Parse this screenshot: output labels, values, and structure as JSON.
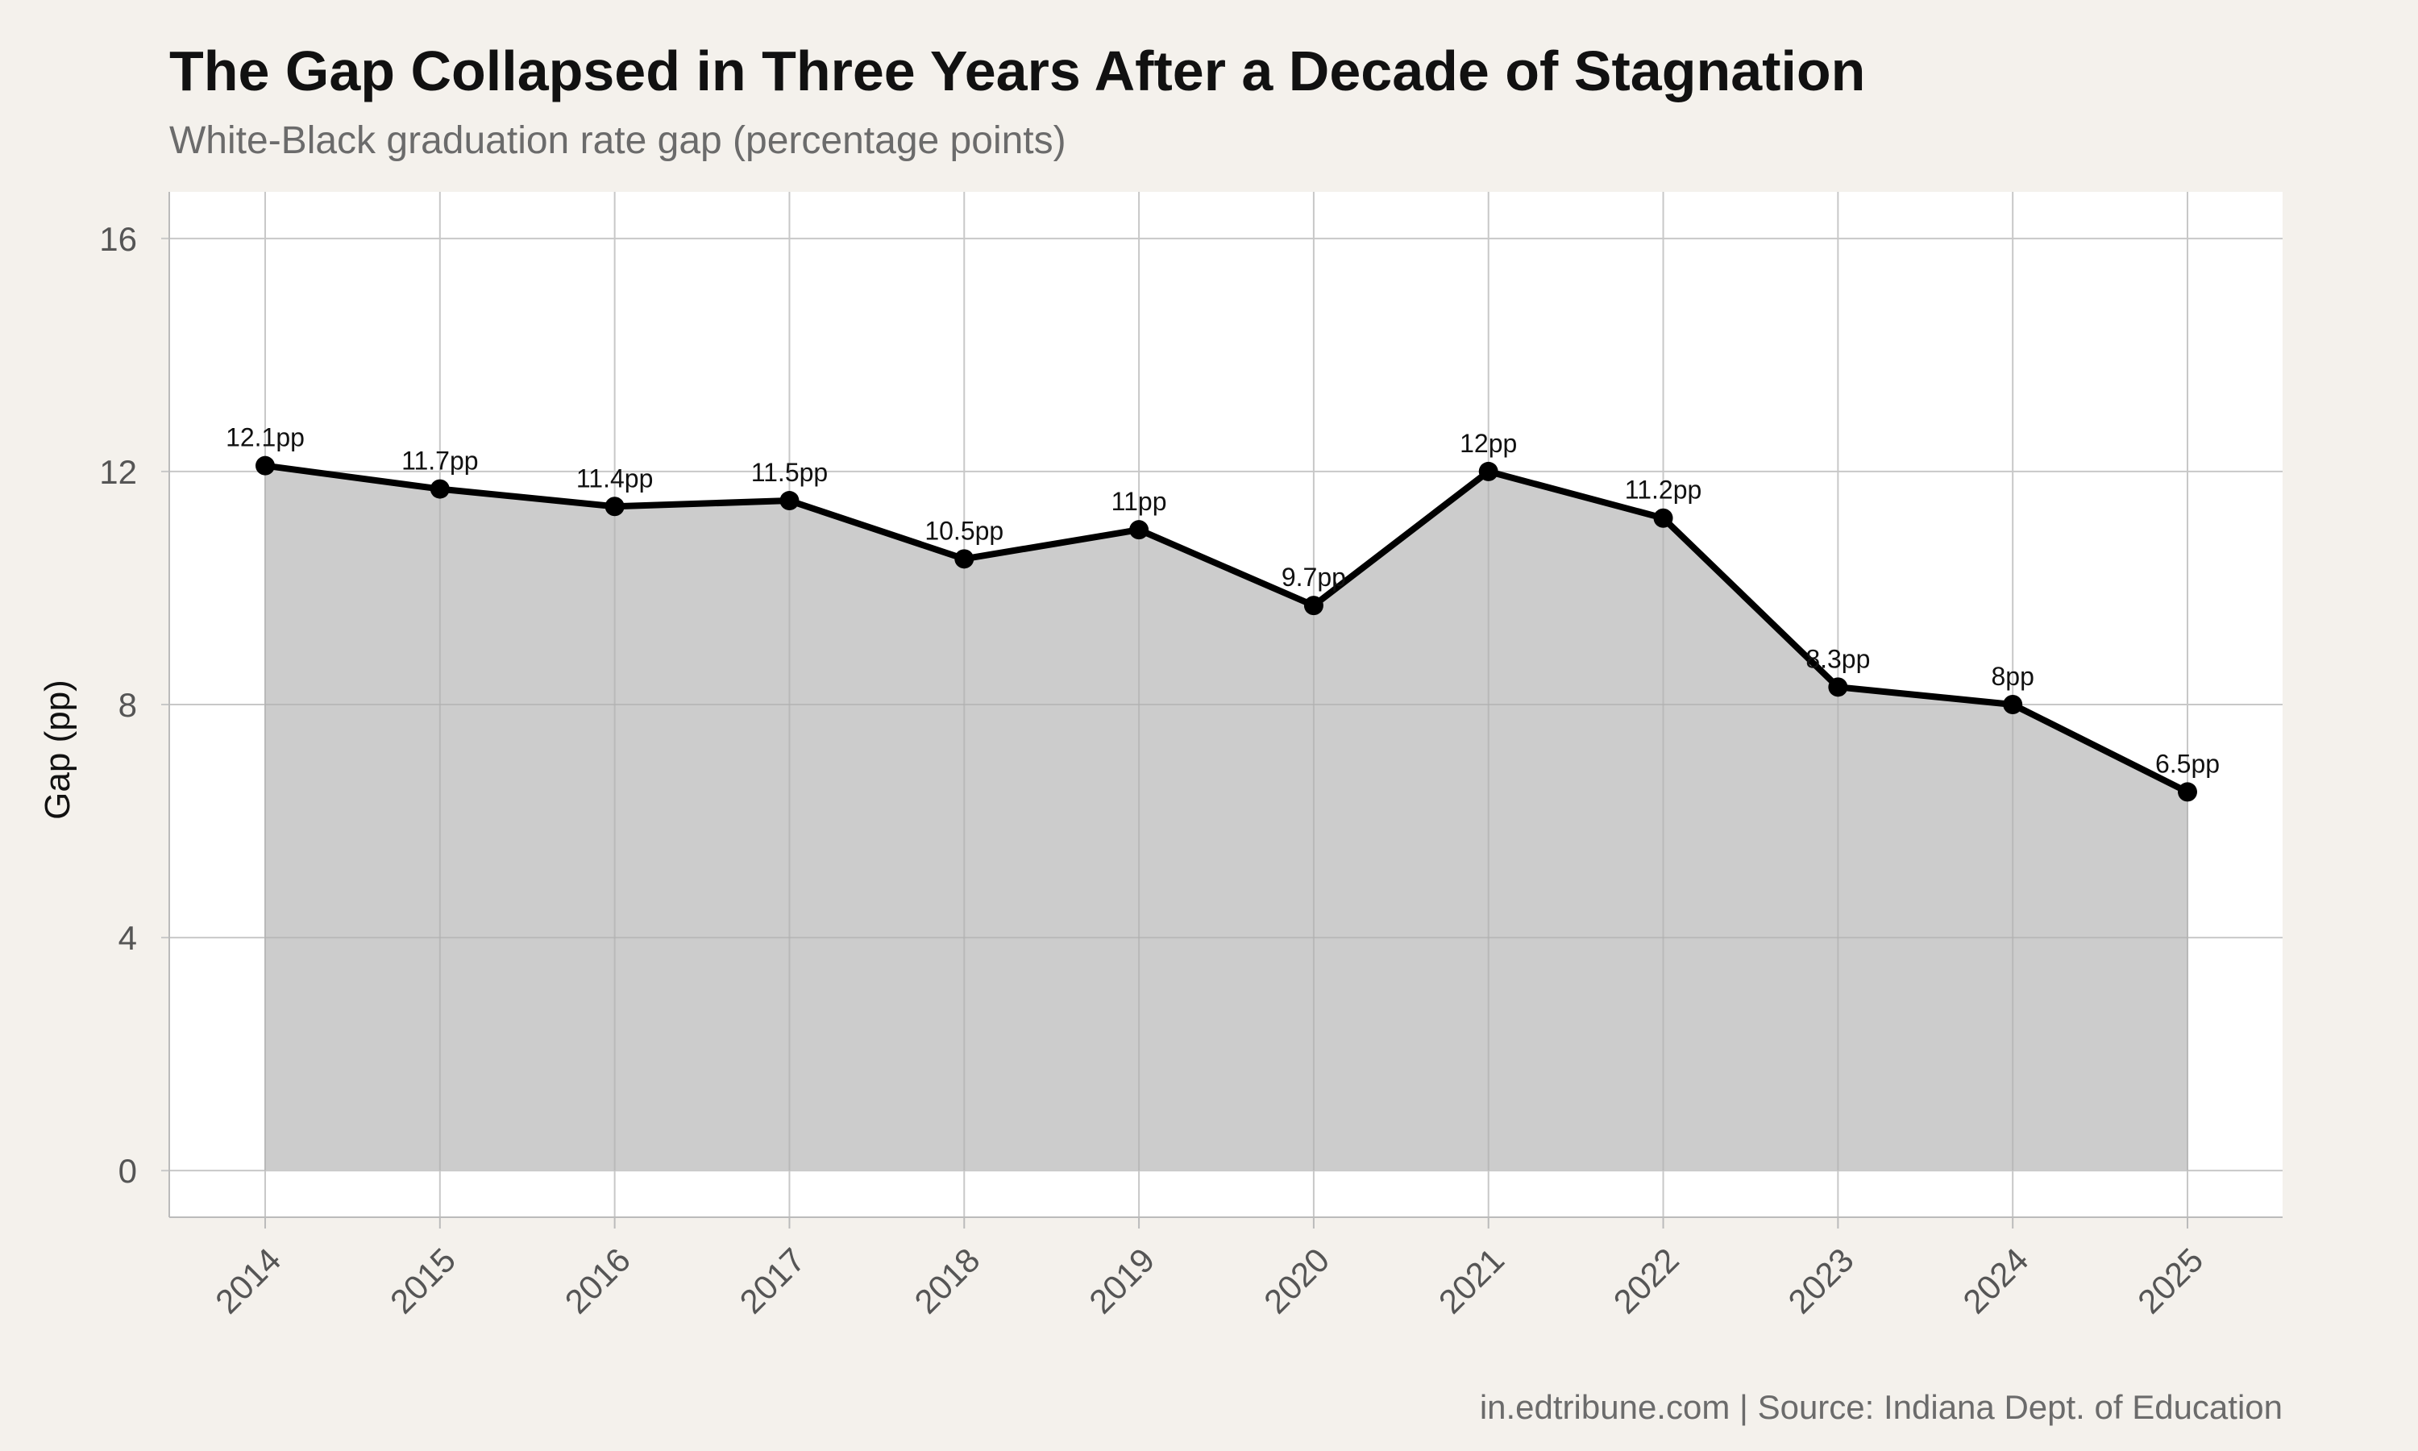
{
  "chart_data": {
    "type": "area",
    "title": "The Gap Collapsed in Three Years After a Decade of Stagnation",
    "subtitle": "White-Black graduation rate gap (percentage points)",
    "caption": "in.edtribune.com | Source: Indiana Dept. of Education",
    "xlabel": "",
    "ylabel": "Gap (pp)",
    "ylim": [
      -0.8,
      16.8
    ],
    "yticks": [
      0,
      4,
      8,
      12,
      16
    ],
    "grid": true,
    "x": [
      "2014",
      "2015",
      "2016",
      "2017",
      "2018",
      "2019",
      "2020",
      "2021",
      "2022",
      "2023",
      "2024",
      "2025"
    ],
    "values": [
      12.1,
      11.7,
      11.4,
      11.5,
      10.5,
      11.0,
      9.7,
      12.0,
      11.2,
      8.3,
      8.0,
      6.5
    ],
    "data_labels": [
      "12.1pp",
      "11.7pp",
      "11.4pp",
      "11.5pp",
      "10.5pp",
      "11pp",
      "9.7pp",
      "12pp",
      "11.2pp",
      "8.3pp",
      "8pp",
      "6.5pp"
    ],
    "colors": {
      "page_background": "#f4f1ec",
      "panel_background": "#ffffff",
      "area_fill": "#cccccc",
      "line": "#000000",
      "grid": "#c8c8c8"
    }
  }
}
